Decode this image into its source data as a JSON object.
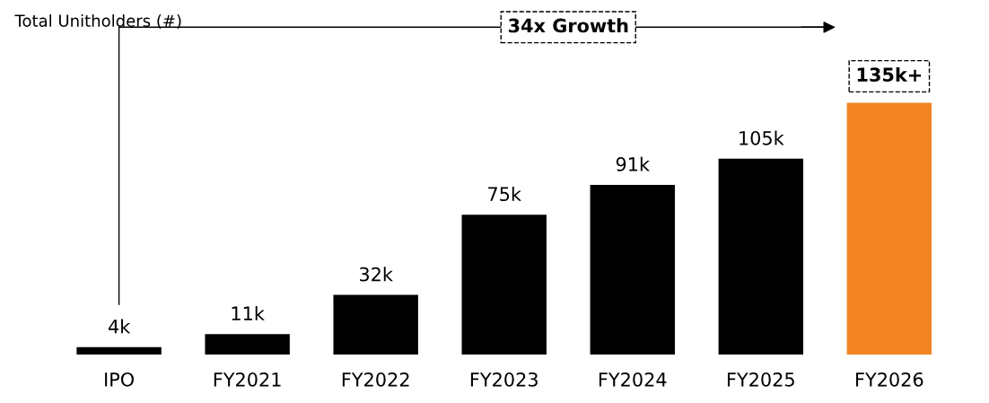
{
  "chart_data": {
    "type": "bar",
    "title": "Total Unitholders (#)",
    "categories": [
      "IPO",
      "FY2021",
      "FY2022",
      "FY2023",
      "FY2024",
      "FY2025",
      "FY2026"
    ],
    "values": [
      4,
      11,
      32,
      75,
      91,
      105,
      135
    ],
    "colors": [
      "#000000",
      "#000000",
      "#000000",
      "#000000",
      "#000000",
      "#000000",
      "#f28424"
    ],
    "value_labels": [
      "4k",
      "11k",
      "32k",
      "75k",
      "91k",
      "105k",
      "135k+"
    ],
    "annotations": [
      "34x Growth"
    ],
    "grid": false,
    "legend": false
  }
}
